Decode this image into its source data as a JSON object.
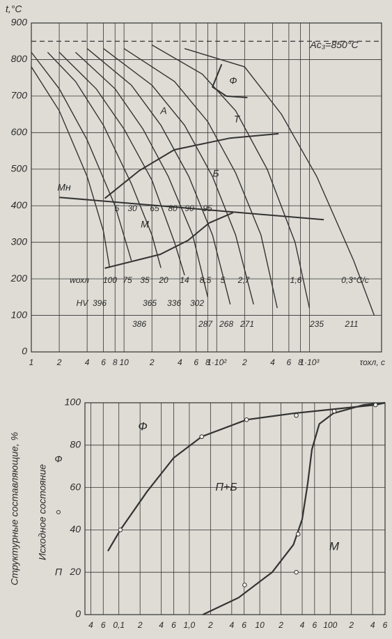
{
  "chart_data": [
    {
      "type": "line",
      "xscale": "log",
      "color": "#333333",
      "grid": true,
      "xlabel": "τохл, с",
      "ylabel": "t,°C",
      "xlim": [
        1,
        6000
      ],
      "ylim": [
        0,
        900
      ],
      "xticks": [
        1,
        2,
        4,
        6,
        8,
        10,
        {
          "value": 20,
          "label": "2"
        },
        {
          "value": 40,
          "label": "4"
        },
        {
          "value": 60,
          "label": "6"
        },
        {
          "value": 80,
          "label": "8"
        },
        {
          "value": 100,
          "label": "1·10²"
        },
        {
          "value": 200,
          "label": "2"
        },
        {
          "value": 400,
          "label": "4"
        },
        {
          "value": 600,
          "label": "6"
        },
        {
          "value": 800,
          "label": "8"
        },
        {
          "value": 1000,
          "label": "1·10³"
        }
      ],
      "yticks": [
        0,
        100,
        200,
        300,
        400,
        500,
        600,
        700,
        800,
        900
      ],
      "reference_line": {
        "value": 850,
        "label": "Ac₃=850°C"
      },
      "cooling_rate_label": "wохл",
      "series": [
        {
          "name": "100",
          "x": [
            1,
            2,
            4,
            6,
            7
          ],
          "y": [
            780,
            660,
            480,
            330,
            230
          ]
        },
        {
          "name": "75",
          "x": [
            1,
            2,
            4,
            8,
            12
          ],
          "y": [
            820,
            720,
            580,
            400,
            250
          ]
        },
        {
          "name": "35",
          "x": [
            1.5,
            3,
            6,
            12,
            20,
            25
          ],
          "y": [
            820,
            740,
            620,
            460,
            320,
            230
          ]
        },
        {
          "name": "20",
          "x": [
            2,
            5,
            10,
            20,
            35,
            45
          ],
          "y": [
            820,
            720,
            610,
            470,
            300,
            210
          ]
        },
        {
          "name": "14",
          "x": [
            3,
            8,
            16,
            30,
            55,
            80
          ],
          "y": [
            820,
            720,
            610,
            480,
            320,
            150
          ]
        },
        {
          "name": "8,5",
          "x": [
            4,
            12,
            25,
            50,
            90,
            140
          ],
          "y": [
            830,
            730,
            620,
            480,
            320,
            130
          ]
        },
        {
          "name": "5",
          "x": [
            6,
            20,
            45,
            90,
            160,
            250
          ],
          "y": [
            830,
            730,
            620,
            480,
            320,
            130
          ]
        },
        {
          "name": "2,7",
          "x": [
            10,
            35,
            80,
            160,
            300,
            450
          ],
          "y": [
            830,
            740,
            630,
            490,
            320,
            120
          ]
        },
        {
          "name": "1,6",
          "x": [
            20,
            70,
            160,
            350,
            700,
            1000
          ],
          "y": [
            840,
            760,
            660,
            500,
            300,
            120
          ]
        },
        {
          "name": "0,3°C/c",
          "x": [
            45,
            200,
            500,
            1200,
            3000,
            5000
          ],
          "y": [
            830,
            780,
            650,
            480,
            250,
            100
          ]
        }
      ],
      "transformation_curves": [
        {
          "name": "Ф",
          "x": [
            113,
            90,
            127,
            214
          ],
          "y": [
            787,
            725,
            700,
            696
          ]
        },
        {
          "name": "Б",
          "x": [
            6.2,
            14.6,
            34.8,
            139,
            465
          ],
          "y": [
            420,
            496,
            553,
            585,
            597
          ]
        },
        {
          "name": "Mн",
          "x": [
            2,
            1430
          ],
          "y": [
            423,
            362
          ]
        },
        {
          "name": "M",
          "x": [
            6.2,
            24.6,
            49,
            83,
            150
          ],
          "y": [
            229,
            267,
            305,
            353,
            381
          ]
        }
      ],
      "region_labels": [
        "А",
        "Т"
      ],
      "mn_percentages": [
        5,
        30,
        65,
        80,
        90,
        95
      ],
      "hardness_label": "HV",
      "hardness": [
        396,
        386,
        365,
        336,
        302,
        287,
        268,
        271,
        235,
        211
      ]
    },
    {
      "type": "line",
      "xscale": "log",
      "color": "#333333",
      "grid": true,
      "ylabel": "Структурные составляющие, %",
      "initial_state": {
        "label": "Исходное состояние",
        "items": [
          "Ф",
          "П"
        ]
      },
      "xlim": [
        0.033,
        600
      ],
      "ylim": [
        0,
        100
      ],
      "xticks": [
        {
          "value": 0.04,
          "label": "4"
        },
        {
          "value": 0.06,
          "label": "6"
        },
        {
          "value": 0.1,
          "label": "0,1"
        },
        {
          "value": 0.2,
          "label": "2"
        },
        {
          "value": 0.4,
          "label": "4"
        },
        {
          "value": 0.6,
          "label": "6"
        },
        {
          "value": 1,
          "label": "1,0"
        },
        2,
        4,
        6,
        10,
        {
          "value": 20,
          "label": "2"
        },
        {
          "value": 40,
          "label": "4"
        },
        {
          "value": 60,
          "label": "6"
        },
        100,
        {
          "value": 200,
          "label": "2"
        },
        {
          "value": 400,
          "label": "4"
        },
        {
          "value": 600,
          "label": "6"
        }
      ],
      "yticks": [
        0,
        20,
        40,
        60,
        80,
        100
      ],
      "series": [
        {
          "name": "Ф",
          "x": [
            0.07,
            0.105,
            0.25,
            0.6,
            1.5,
            6.5,
            30,
            114,
            440,
            600
          ],
          "y": [
            30,
            40,
            58,
            74,
            84,
            92,
            95,
            97,
            99,
            100
          ]
        },
        {
          "name": "M",
          "x": [
            1.56,
            5,
            15,
            30,
            40,
            48,
            55,
            70,
            110,
            300,
            600
          ],
          "y": [
            0,
            8,
            20,
            33,
            45,
            62,
            78,
            90,
            95,
            99,
            100
          ]
        }
      ],
      "points": {
        "x": [
          0.105,
          1.5,
          6.5,
          33,
          114,
          440,
          6.1,
          33,
          35
        ],
        "y": [
          40,
          84,
          92,
          94,
          96,
          99,
          14,
          20,
          38
        ]
      },
      "region_labels": [
        "П+Б"
      ]
    }
  ]
}
